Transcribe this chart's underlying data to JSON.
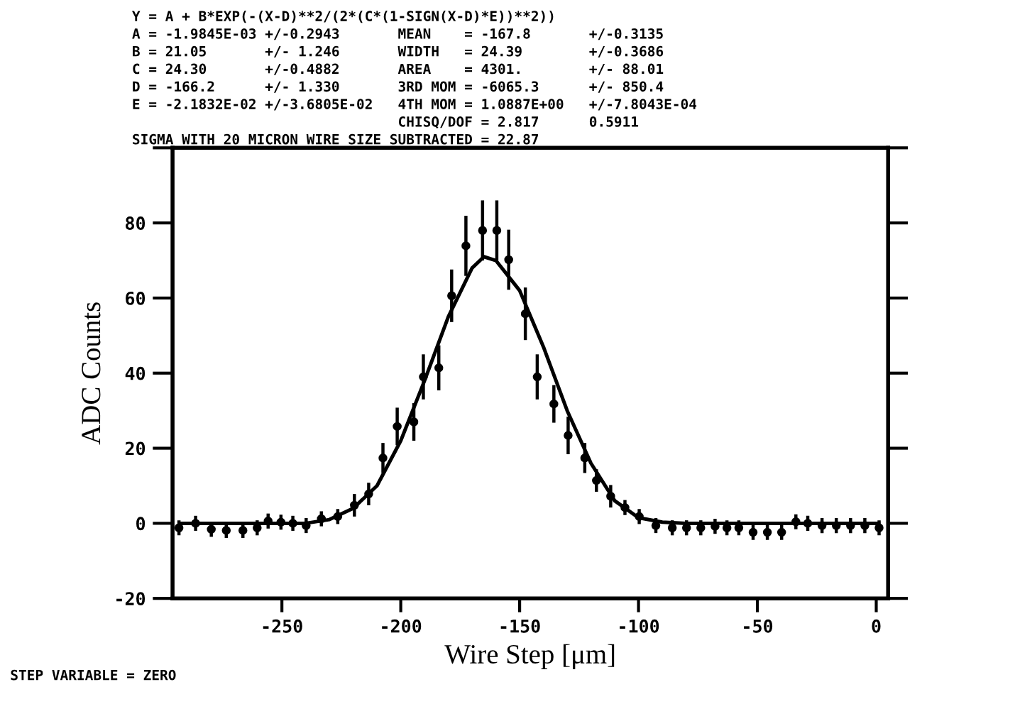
{
  "chart_data": {
    "type": "scatter",
    "xlabel": "Wire Step [μm]",
    "ylabel": "ADC Counts",
    "xlim": [
      -296,
      5
    ],
    "ylim": [
      -20,
      100
    ],
    "xticks": [
      -250,
      -200,
      -150,
      -100,
      -50,
      0
    ],
    "yticks": [
      -20,
      0,
      20,
      40,
      60,
      80,
      {
        "value": 100,
        "label": null
      }
    ],
    "grid": false,
    "legend": false,
    "marker": "circle",
    "annotations": [
      "Y = A + B*EXP(-(X-D)**2/(2*(C*(1-SIGN(X-D)*E))**2))",
      "A = -1.9845E-03 +/-0.2943       MEAN    = -167.8       +/-0.3135",
      "B = 21.05       +/- 1.246       WIDTH   = 24.39        +/-0.3686",
      "C = 24.30       +/-0.4882       AREA    = 4301.        +/- 88.01",
      "D = -166.2      +/- 1.330       3RD MOM = -6065.3      +/- 850.4",
      "E = -2.1832E-02 +/-3.6805E-02   4TH MOM = 1.0887E+00   +/-7.8043E-04",
      "                                CHISQ/DOF = 2.817      0.5911",
      "SIGMA WITH 20 MICRON WIRE SIZE SUBTRACTED = 22.87",
      "STEP VARIABLE = ZERO"
    ],
    "series": [
      {
        "color": "#000000",
        "x": [
          -293.3,
          -286.3,
          -279.7,
          -273.4,
          -266.4,
          -260.4,
          -255.8,
          -250.4,
          -245.4,
          -239.8,
          -233.4,
          -226.5,
          -219.5,
          -213.5,
          -207.5,
          -201.5,
          -194.5,
          -190.5,
          -184,
          -178.6,
          -172.6,
          -165.6,
          -159.6,
          -154.6,
          -147.6,
          -142.6,
          -135.6,
          -129.6,
          -122.6,
          -117.7,
          -111.7,
          -105.7,
          -99.7,
          -92.7,
          -85.8,
          -79.8,
          -73.8,
          -67.8,
          -62.8,
          -57.8,
          -51.8,
          -45.8,
          -39.8,
          -33.8,
          -28.8,
          -22.8,
          -16.8,
          -10.8,
          -4.8,
          1.2
        ],
        "values": [
          -1.2,
          0,
          -1.6,
          -1.9,
          -1.9,
          -1.2,
          0.6,
          0.3,
          0,
          -0.6,
          1.2,
          1.8,
          4.8,
          7.8,
          17.4,
          25.8,
          27,
          39,
          41.4,
          60.6,
          73.9,
          78,
          78,
          70.2,
          55.8,
          39,
          31.8,
          23.4,
          17.4,
          11.4,
          7.2,
          4.2,
          1.8,
          -0.6,
          -1.2,
          -1.2,
          -1.2,
          -0.8,
          -1.2,
          -1.2,
          -2.4,
          -2.4,
          -2.4,
          0.4,
          0,
          -0.6,
          -0.6,
          -0.6,
          -0.6,
          -1.2
        ],
        "errors": [
          2,
          2,
          2,
          2,
          2,
          2,
          2,
          2,
          2,
          2,
          2,
          2,
          3,
          3,
          4,
          5,
          5,
          6,
          6,
          7,
          8,
          8,
          8,
          8,
          7,
          6,
          5,
          5,
          4,
          3,
          3,
          2,
          2,
          2,
          2,
          2,
          2,
          2,
          2,
          2,
          2,
          2,
          2,
          2,
          2,
          2,
          2,
          2,
          2,
          2
        ]
      },
      {
        "type": "line",
        "color": "#000000",
        "marker": "none",
        "line_style": "solid",
        "x": [
          -293,
          -240,
          -230,
          -220,
          -210,
          -200,
          -190,
          -180,
          -170,
          -165,
          -160,
          -150,
          -140,
          -130,
          -120,
          -110,
          -100,
          -90,
          -80,
          1
        ],
        "values": [
          0,
          0,
          1,
          4,
          10,
          22,
          38,
          55,
          68,
          71,
          70,
          62,
          47,
          30,
          16,
          6,
          1.5,
          0.3,
          0,
          0
        ]
      }
    ]
  }
}
